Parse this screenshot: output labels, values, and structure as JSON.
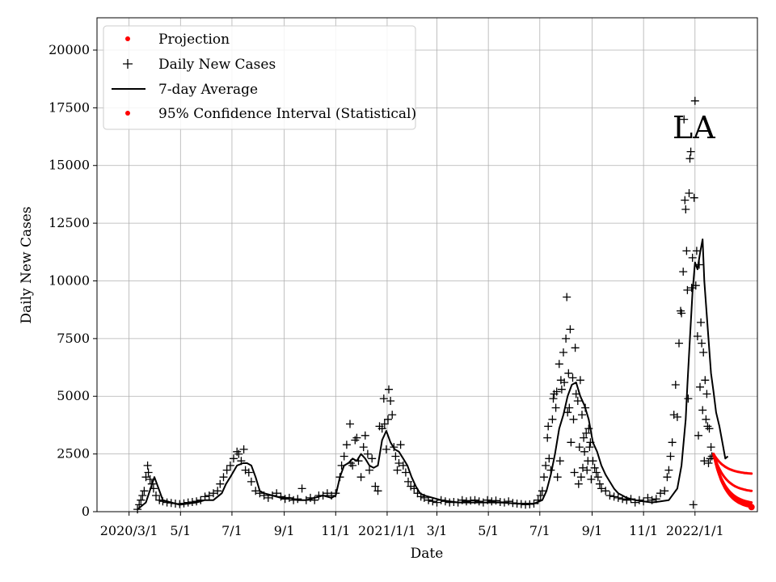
{
  "chart_data": {
    "type": "scatter",
    "title": "",
    "region_label": "LA",
    "xlabel": "Date",
    "ylabel": "Daily New Cases",
    "ylim": [
      0,
      21400
    ],
    "xlim_days": [
      -38,
      745
    ],
    "yticks": [
      0,
      2500,
      5000,
      7500,
      10000,
      12500,
      15000,
      17500,
      20000
    ],
    "xticks": [
      {
        "label": "2020/3/1",
        "day": 0
      },
      {
        "label": "5/1",
        "day": 61
      },
      {
        "label": "7/1",
        "day": 122
      },
      {
        "label": "9/1",
        "day": 184
      },
      {
        "label": "11/1",
        "day": 245
      },
      {
        "label": "2021/1/1",
        "day": 306
      },
      {
        "label": "3/1",
        "day": 365
      },
      {
        "label": "5/1",
        "day": 426
      },
      {
        "label": "7/1",
        "day": 487
      },
      {
        "label": "9/1",
        "day": 549
      },
      {
        "label": "11/1",
        "day": 610
      },
      {
        "label": "2022/1/1",
        "day": 671
      }
    ],
    "grid": true,
    "legend_position": "top-left",
    "legend": [
      {
        "label": "Projection",
        "marker": "dot",
        "color": "#ff0000"
      },
      {
        "label": "Daily New Cases",
        "marker": "plus",
        "color": "#000000"
      },
      {
        "label": "7-day Average",
        "marker": "line",
        "color": "#000000"
      },
      {
        "label": "95% Confidence Interval (Statistical)",
        "marker": "dot",
        "color": "#ff0000"
      }
    ],
    "seven_day_average": {
      "name": "7-day Average",
      "color": "#000000",
      "days": [
        10,
        20,
        30,
        35,
        40,
        50,
        60,
        70,
        80,
        90,
        100,
        110,
        115,
        120,
        128,
        135,
        140,
        145,
        150,
        155,
        160,
        170,
        180,
        190,
        200,
        210,
        220,
        230,
        240,
        245,
        250,
        255,
        260,
        265,
        270,
        275,
        280,
        285,
        290,
        295,
        300,
        305,
        310,
        315,
        320,
        325,
        330,
        335,
        340,
        345,
        350,
        360,
        370,
        380,
        390,
        400,
        420,
        440,
        460,
        480,
        490,
        495,
        500,
        505,
        510,
        515,
        520,
        525,
        530,
        535,
        540,
        545,
        550,
        555,
        560,
        565,
        570,
        575,
        580,
        585,
        590,
        600,
        610,
        620,
        630,
        640,
        650,
        655,
        660,
        662,
        665,
        668,
        671,
        674,
        677,
        680,
        682,
        685,
        688,
        690,
        693,
        696,
        700,
        704,
        707,
        710
      ],
      "values": [
        100,
        400,
        1500,
        1000,
        500,
        400,
        300,
        350,
        400,
        500,
        500,
        800,
        1200,
        1500,
        2000,
        2100,
        2100,
        2000,
        1500,
        900,
        800,
        700,
        600,
        600,
        500,
        500,
        600,
        700,
        600,
        700,
        1500,
        2000,
        2100,
        2300,
        2200,
        2500,
        2300,
        2000,
        1900,
        2000,
        3100,
        3500,
        3000,
        2700,
        2600,
        2300,
        2000,
        1500,
        1100,
        800,
        700,
        600,
        500,
        450,
        400,
        400,
        400,
        400,
        350,
        350,
        500,
        900,
        1600,
        2500,
        3600,
        4200,
        5000,
        5500,
        5600,
        5000,
        4600,
        4000,
        3000,
        2600,
        2000,
        1600,
        1300,
        1000,
        800,
        700,
        600,
        500,
        450,
        400,
        450,
        500,
        1000,
        2000,
        4000,
        5500,
        7500,
        9500,
        10800,
        10500,
        11200,
        11800,
        10000,
        8500,
        7000,
        6000,
        5200,
        4300,
        3700,
        2900,
        2300,
        2400
      ]
    },
    "daily_new_cases": {
      "name": "Daily New Cases",
      "color": "#000000",
      "points": [
        [
          10,
          100
        ],
        [
          12,
          300
        ],
        [
          14,
          500
        ],
        [
          16,
          700
        ],
        [
          18,
          900
        ],
        [
          20,
          1500
        ],
        [
          22,
          2000
        ],
        [
          23,
          1700
        ],
        [
          25,
          1400
        ],
        [
          27,
          1200
        ],
        [
          29,
          1000
        ],
        [
          32,
          700
        ],
        [
          36,
          500
        ],
        [
          40,
          450
        ],
        [
          45,
          400
        ],
        [
          50,
          380
        ],
        [
          55,
          350
        ],
        [
          60,
          330
        ],
        [
          65,
          360
        ],
        [
          70,
          400
        ],
        [
          75,
          420
        ],
        [
          80,
          450
        ],
        [
          85,
          500
        ],
        [
          90,
          650
        ],
        [
          95,
          700
        ],
        [
          100,
          800
        ],
        [
          105,
          900
        ],
        [
          108,
          1200
        ],
        [
          112,
          1500
        ],
        [
          116,
          1800
        ],
        [
          120,
          2000
        ],
        [
          124,
          2300
        ],
        [
          128,
          2600
        ],
        [
          130,
          2500
        ],
        [
          133,
          2200
        ],
        [
          136,
          2700
        ],
        [
          138,
          1800
        ],
        [
          142,
          1700
        ],
        [
          145,
          1300
        ],
        [
          150,
          900
        ],
        [
          155,
          800
        ],
        [
          160,
          700
        ],
        [
          165,
          600
        ],
        [
          170,
          700
        ],
        [
          175,
          800
        ],
        [
          180,
          650
        ],
        [
          185,
          550
        ],
        [
          190,
          600
        ],
        [
          195,
          500
        ],
        [
          200,
          550
        ],
        [
          205,
          1000
        ],
        [
          210,
          500
        ],
        [
          215,
          600
        ],
        [
          220,
          500
        ],
        [
          225,
          700
        ],
        [
          230,
          700
        ],
        [
          235,
          800
        ],
        [
          240,
          700
        ],
        [
          245,
          800
        ],
        [
          250,
          1500
        ],
        [
          252,
          2000
        ],
        [
          255,
          2400
        ],
        [
          258,
          2900
        ],
        [
          262,
          3800
        ],
        [
          263,
          2100
        ],
        [
          265,
          2000
        ],
        [
          268,
          3100
        ],
        [
          270,
          3200
        ],
        [
          272,
          2200
        ],
        [
          275,
          1500
        ],
        [
          278,
          2800
        ],
        [
          280,
          3300
        ],
        [
          283,
          2500
        ],
        [
          285,
          1800
        ],
        [
          288,
          2300
        ],
        [
          292,
          1100
        ],
        [
          295,
          900
        ],
        [
          297,
          3700
        ],
        [
          300,
          3600
        ],
        [
          302,
          4900
        ],
        [
          303,
          3800
        ],
        [
          305,
          2700
        ],
        [
          307,
          4000
        ],
        [
          308,
          5300
        ],
        [
          310,
          4800
        ],
        [
          312,
          4200
        ],
        [
          314,
          2800
        ],
        [
          316,
          2400
        ],
        [
          318,
          1800
        ],
        [
          320,
          2100
        ],
        [
          322,
          2900
        ],
        [
          325,
          2000
        ],
        [
          328,
          1700
        ],
        [
          331,
          1300
        ],
        [
          334,
          1100
        ],
        [
          338,
          1000
        ],
        [
          342,
          800
        ],
        [
          346,
          650
        ],
        [
          350,
          600
        ],
        [
          355,
          500
        ],
        [
          360,
          450
        ],
        [
          365,
          400
        ],
        [
          370,
          500
        ],
        [
          375,
          450
        ],
        [
          380,
          400
        ],
        [
          385,
          420
        ],
        [
          390,
          400
        ],
        [
          395,
          500
        ],
        [
          400,
          450
        ],
        [
          405,
          480
        ],
        [
          410,
          500
        ],
        [
          415,
          450
        ],
        [
          420,
          400
        ],
        [
          425,
          500
        ],
        [
          430,
          450
        ],
        [
          435,
          480
        ],
        [
          440,
          420
        ],
        [
          445,
          400
        ],
        [
          450,
          450
        ],
        [
          455,
          380
        ],
        [
          460,
          350
        ],
        [
          465,
          330
        ],
        [
          470,
          300
        ],
        [
          475,
          320
        ],
        [
          480,
          350
        ],
        [
          485,
          500
        ],
        [
          488,
          700
        ],
        [
          490,
          900
        ],
        [
          492,
          1500
        ],
        [
          494,
          2000
        ],
        [
          496,
          3200
        ],
        [
          497,
          3700
        ],
        [
          498,
          2300
        ],
        [
          500,
          1800
        ],
        [
          502,
          4000
        ],
        [
          503,
          4900
        ],
        [
          504,
          5100
        ],
        [
          506,
          4500
        ],
        [
          507,
          5200
        ],
        [
          508,
          1500
        ],
        [
          510,
          6400
        ],
        [
          511,
          2200
        ],
        [
          512,
          5700
        ],
        [
          513,
          5300
        ],
        [
          515,
          6900
        ],
        [
          516,
          5600
        ],
        [
          518,
          7500
        ],
        [
          519,
          9300
        ],
        [
          520,
          4300
        ],
        [
          521,
          6000
        ],
        [
          522,
          4500
        ],
        [
          523,
          7900
        ],
        [
          524,
          3000
        ],
        [
          526,
          5800
        ],
        [
          527,
          4000
        ],
        [
          528,
          1700
        ],
        [
          529,
          7100
        ],
        [
          530,
          5100
        ],
        [
          532,
          4800
        ],
        [
          533,
          1200
        ],
        [
          534,
          2800
        ],
        [
          535,
          5700
        ],
        [
          536,
          1500
        ],
        [
          537,
          4200
        ],
        [
          538,
          1900
        ],
        [
          539,
          3200
        ],
        [
          540,
          2600
        ],
        [
          541,
          4500
        ],
        [
          542,
          3400
        ],
        [
          543,
          1800
        ],
        [
          544,
          2200
        ],
        [
          545,
          3600
        ],
        [
          546,
          2800
        ],
        [
          547,
          3000
        ],
        [
          548,
          1400
        ],
        [
          550,
          2200
        ],
        [
          552,
          1900
        ],
        [
          554,
          1700
        ],
        [
          556,
          1500
        ],
        [
          558,
          1200
        ],
        [
          560,
          1000
        ],
        [
          565,
          900
        ],
        [
          570,
          700
        ],
        [
          575,
          650
        ],
        [
          580,
          600
        ],
        [
          585,
          550
        ],
        [
          590,
          500
        ],
        [
          595,
          550
        ],
        [
          600,
          400
        ],
        [
          605,
          500
        ],
        [
          610,
          450
        ],
        [
          615,
          600
        ],
        [
          620,
          500
        ],
        [
          625,
          550
        ],
        [
          630,
          800
        ],
        [
          635,
          900
        ],
        [
          638,
          1500
        ],
        [
          640,
          1800
        ],
        [
          642,
          2400
        ],
        [
          644,
          3000
        ],
        [
          646,
          4200
        ],
        [
          648,
          5500
        ],
        [
          650,
          4100
        ],
        [
          652,
          7300
        ],
        [
          654,
          8700
        ],
        [
          655,
          8600
        ],
        [
          657,
          10400
        ],
        [
          658,
          17000
        ],
        [
          659,
          13500
        ],
        [
          660,
          13100
        ],
        [
          661,
          11300
        ],
        [
          662,
          9600
        ],
        [
          663,
          4900
        ],
        [
          664,
          13800
        ],
        [
          665,
          15300
        ],
        [
          666,
          15600
        ],
        [
          667,
          9700
        ],
        [
          668,
          11000
        ],
        [
          669,
          300
        ],
        [
          670,
          13600
        ],
        [
          671,
          17800
        ],
        [
          672,
          9800
        ],
        [
          673,
          11300
        ],
        [
          674,
          7600
        ],
        [
          675,
          3300
        ],
        [
          676,
          10700
        ],
        [
          677,
          5400
        ],
        [
          678,
          8200
        ],
        [
          679,
          7300
        ],
        [
          680,
          4400
        ],
        [
          681,
          6900
        ],
        [
          682,
          2200
        ],
        [
          683,
          5700
        ],
        [
          684,
          4000
        ],
        [
          685,
          5100
        ],
        [
          686,
          3700
        ],
        [
          687,
          2100
        ],
        [
          688,
          3600
        ],
        [
          689,
          2300
        ],
        [
          690,
          2800
        ],
        [
          691,
          2400
        ]
      ]
    },
    "projection": {
      "name": "Projection",
      "color": "#ff0000",
      "start_day": 693,
      "end_day": 738,
      "start_value": 2500,
      "bands_end_values": [
        1650,
        900,
        400,
        300,
        250,
        200
      ]
    },
    "confidence_interval": {
      "name": "95% Confidence Interval (Statistical)",
      "color": "#ff0000"
    }
  }
}
